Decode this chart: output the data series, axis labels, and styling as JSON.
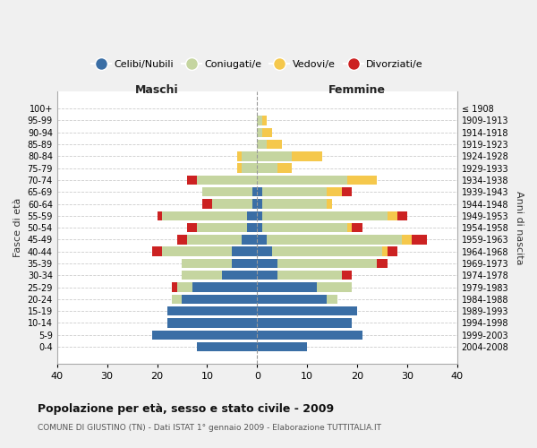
{
  "age_groups": [
    "0-4",
    "5-9",
    "10-14",
    "15-19",
    "20-24",
    "25-29",
    "30-34",
    "35-39",
    "40-44",
    "45-49",
    "50-54",
    "55-59",
    "60-64",
    "65-69",
    "70-74",
    "75-79",
    "80-84",
    "85-89",
    "90-94",
    "95-99",
    "100+"
  ],
  "birth_years": [
    "2004-2008",
    "1999-2003",
    "1994-1998",
    "1989-1993",
    "1984-1988",
    "1979-1983",
    "1974-1978",
    "1969-1973",
    "1964-1968",
    "1959-1963",
    "1954-1958",
    "1949-1953",
    "1944-1948",
    "1939-1943",
    "1934-1938",
    "1929-1933",
    "1924-1928",
    "1919-1923",
    "1914-1918",
    "1909-1913",
    "≤ 1908"
  ],
  "colors": {
    "celibi": "#3a6ea5",
    "coniugati": "#c5d5a0",
    "vedovi": "#f5c84c",
    "divorziati": "#cc2222"
  },
  "maschi": {
    "celibi": [
      12,
      21,
      18,
      18,
      15,
      13,
      7,
      5,
      5,
      3,
      2,
      2,
      1,
      1,
      0,
      0,
      0,
      0,
      0,
      0,
      0
    ],
    "coniugati": [
      0,
      0,
      0,
      0,
      2,
      3,
      8,
      10,
      14,
      11,
      10,
      17,
      8,
      10,
      12,
      3,
      3,
      0,
      0,
      0,
      0
    ],
    "vedovi": [
      0,
      0,
      0,
      0,
      0,
      0,
      0,
      0,
      0,
      0,
      0,
      0,
      0,
      0,
      0,
      1,
      1,
      0,
      0,
      0,
      0
    ],
    "divorziati": [
      0,
      0,
      0,
      0,
      0,
      1,
      0,
      0,
      2,
      2,
      2,
      1,
      2,
      0,
      2,
      0,
      0,
      0,
      0,
      0,
      0
    ]
  },
  "femmine": {
    "celibi": [
      10,
      21,
      19,
      20,
      14,
      12,
      4,
      4,
      3,
      2,
      1,
      1,
      1,
      1,
      0,
      0,
      0,
      0,
      0,
      0,
      0
    ],
    "coniugati": [
      0,
      0,
      0,
      0,
      2,
      7,
      13,
      20,
      22,
      27,
      17,
      25,
      13,
      13,
      18,
      4,
      7,
      2,
      1,
      1,
      0
    ],
    "vedovi": [
      0,
      0,
      0,
      0,
      0,
      0,
      0,
      0,
      1,
      2,
      1,
      2,
      1,
      3,
      6,
      3,
      6,
      3,
      2,
      1,
      0
    ],
    "divorziati": [
      0,
      0,
      0,
      0,
      0,
      0,
      2,
      2,
      2,
      3,
      2,
      2,
      0,
      2,
      0,
      0,
      0,
      0,
      0,
      0,
      0
    ]
  },
  "xlim": [
    -40,
    40
  ],
  "xticks": [
    -40,
    -30,
    -20,
    -10,
    0,
    10,
    20,
    30,
    40
  ],
  "xticklabels": [
    "40",
    "30",
    "20",
    "10",
    "0",
    "10",
    "20",
    "30",
    "40"
  ],
  "title": "Popolazione per età, sesso e stato civile - 2009",
  "subtitle": "COMUNE DI GIUSTINO (TN) - Dati ISTAT 1° gennaio 2009 - Elaborazione TUTTITALIA.IT",
  "ylabel_left": "Fasce di età",
  "ylabel_right": "Anni di nascita",
  "legend_labels": [
    "Celibi/Nubili",
    "Coniugati/e",
    "Vedovi/e",
    "Divorziati/e"
  ],
  "maschi_label": "Maschi",
  "femmine_label": "Femmine",
  "bg_color": "#f0f0f0",
  "plot_bg_color": "#ffffff"
}
